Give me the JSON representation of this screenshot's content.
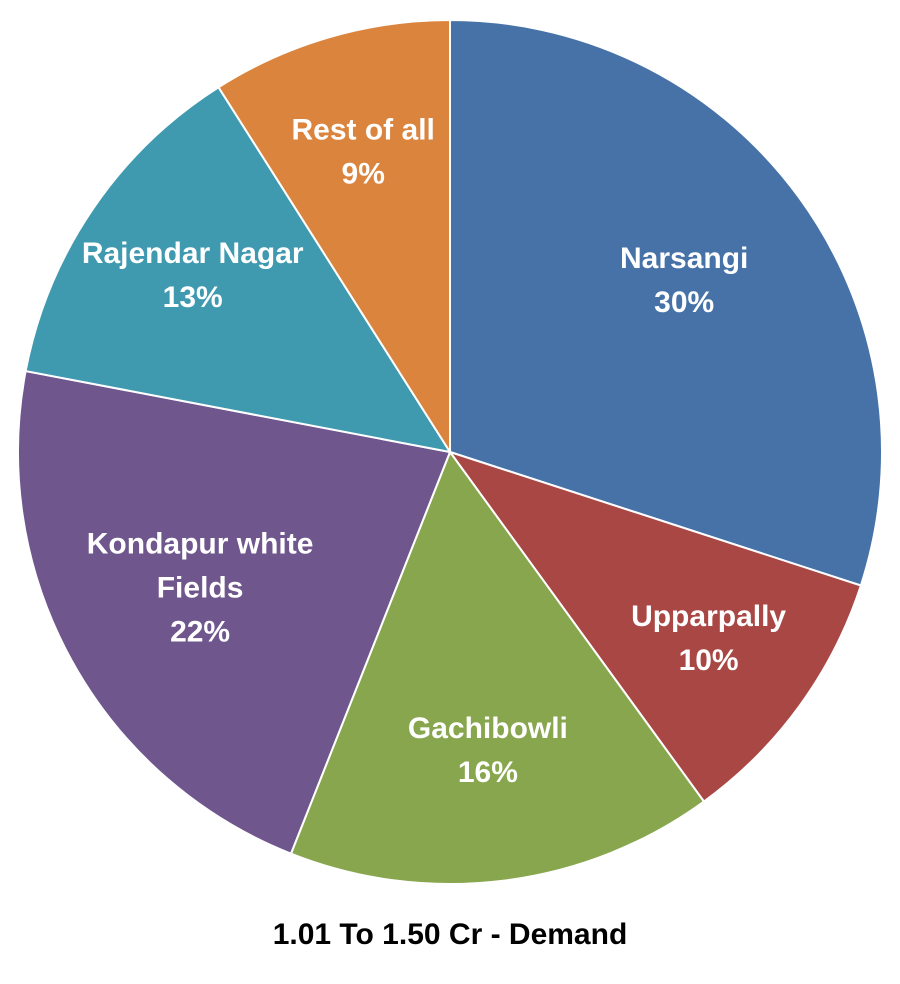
{
  "chart_data": {
    "type": "pie",
    "title": "1.01 To 1.50 Cr - Demand",
    "slices": [
      {
        "name": "Narsangi",
        "value": 30,
        "label": "30%",
        "color": "#4672A8"
      },
      {
        "name": "Upparpally",
        "value": 10,
        "label": "10%",
        "color": "#A94745"
      },
      {
        "name": "Gachibowli",
        "value": 16,
        "label": "16%",
        "color": "#88A64D"
      },
      {
        "name": "Kondapur white Fields",
        "name_lines": [
          "Kondapur white",
          "Fields"
        ],
        "value": 22,
        "label": "22%",
        "color": "#6F568D"
      },
      {
        "name": "Rajendar Nagar",
        "value": 13,
        "label": "13%",
        "color": "#3F99AF"
      },
      {
        "name": "Rest of all",
        "value": 9,
        "label": "9%",
        "color": "#DB843D"
      }
    ]
  }
}
